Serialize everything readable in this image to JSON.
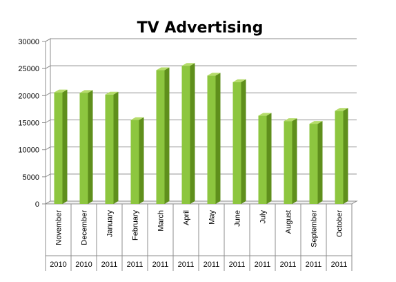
{
  "chart_data": {
    "type": "bar",
    "title": "TV Advertising",
    "xlabel": "",
    "ylabel": "",
    "ylim": [
      0,
      30000
    ],
    "yticks": [
      0,
      5000,
      10000,
      15000,
      20000,
      25000,
      30000
    ],
    "grid": true,
    "legend": "none",
    "bar_color": "#8dc63f",
    "categories": [
      "November",
      "December",
      "January",
      "February",
      "March",
      "April",
      "May",
      "June",
      "July",
      "August",
      "September",
      "October"
    ],
    "years": [
      "2010",
      "2010",
      "2011",
      "2011",
      "2011",
      "2011",
      "2011",
      "2011",
      "2011",
      "2011",
      "2011",
      "2011"
    ],
    "values": [
      20600,
      20500,
      20200,
      15500,
      24700,
      25500,
      23700,
      22500,
      16300,
      15300,
      14800,
      17200
    ]
  }
}
